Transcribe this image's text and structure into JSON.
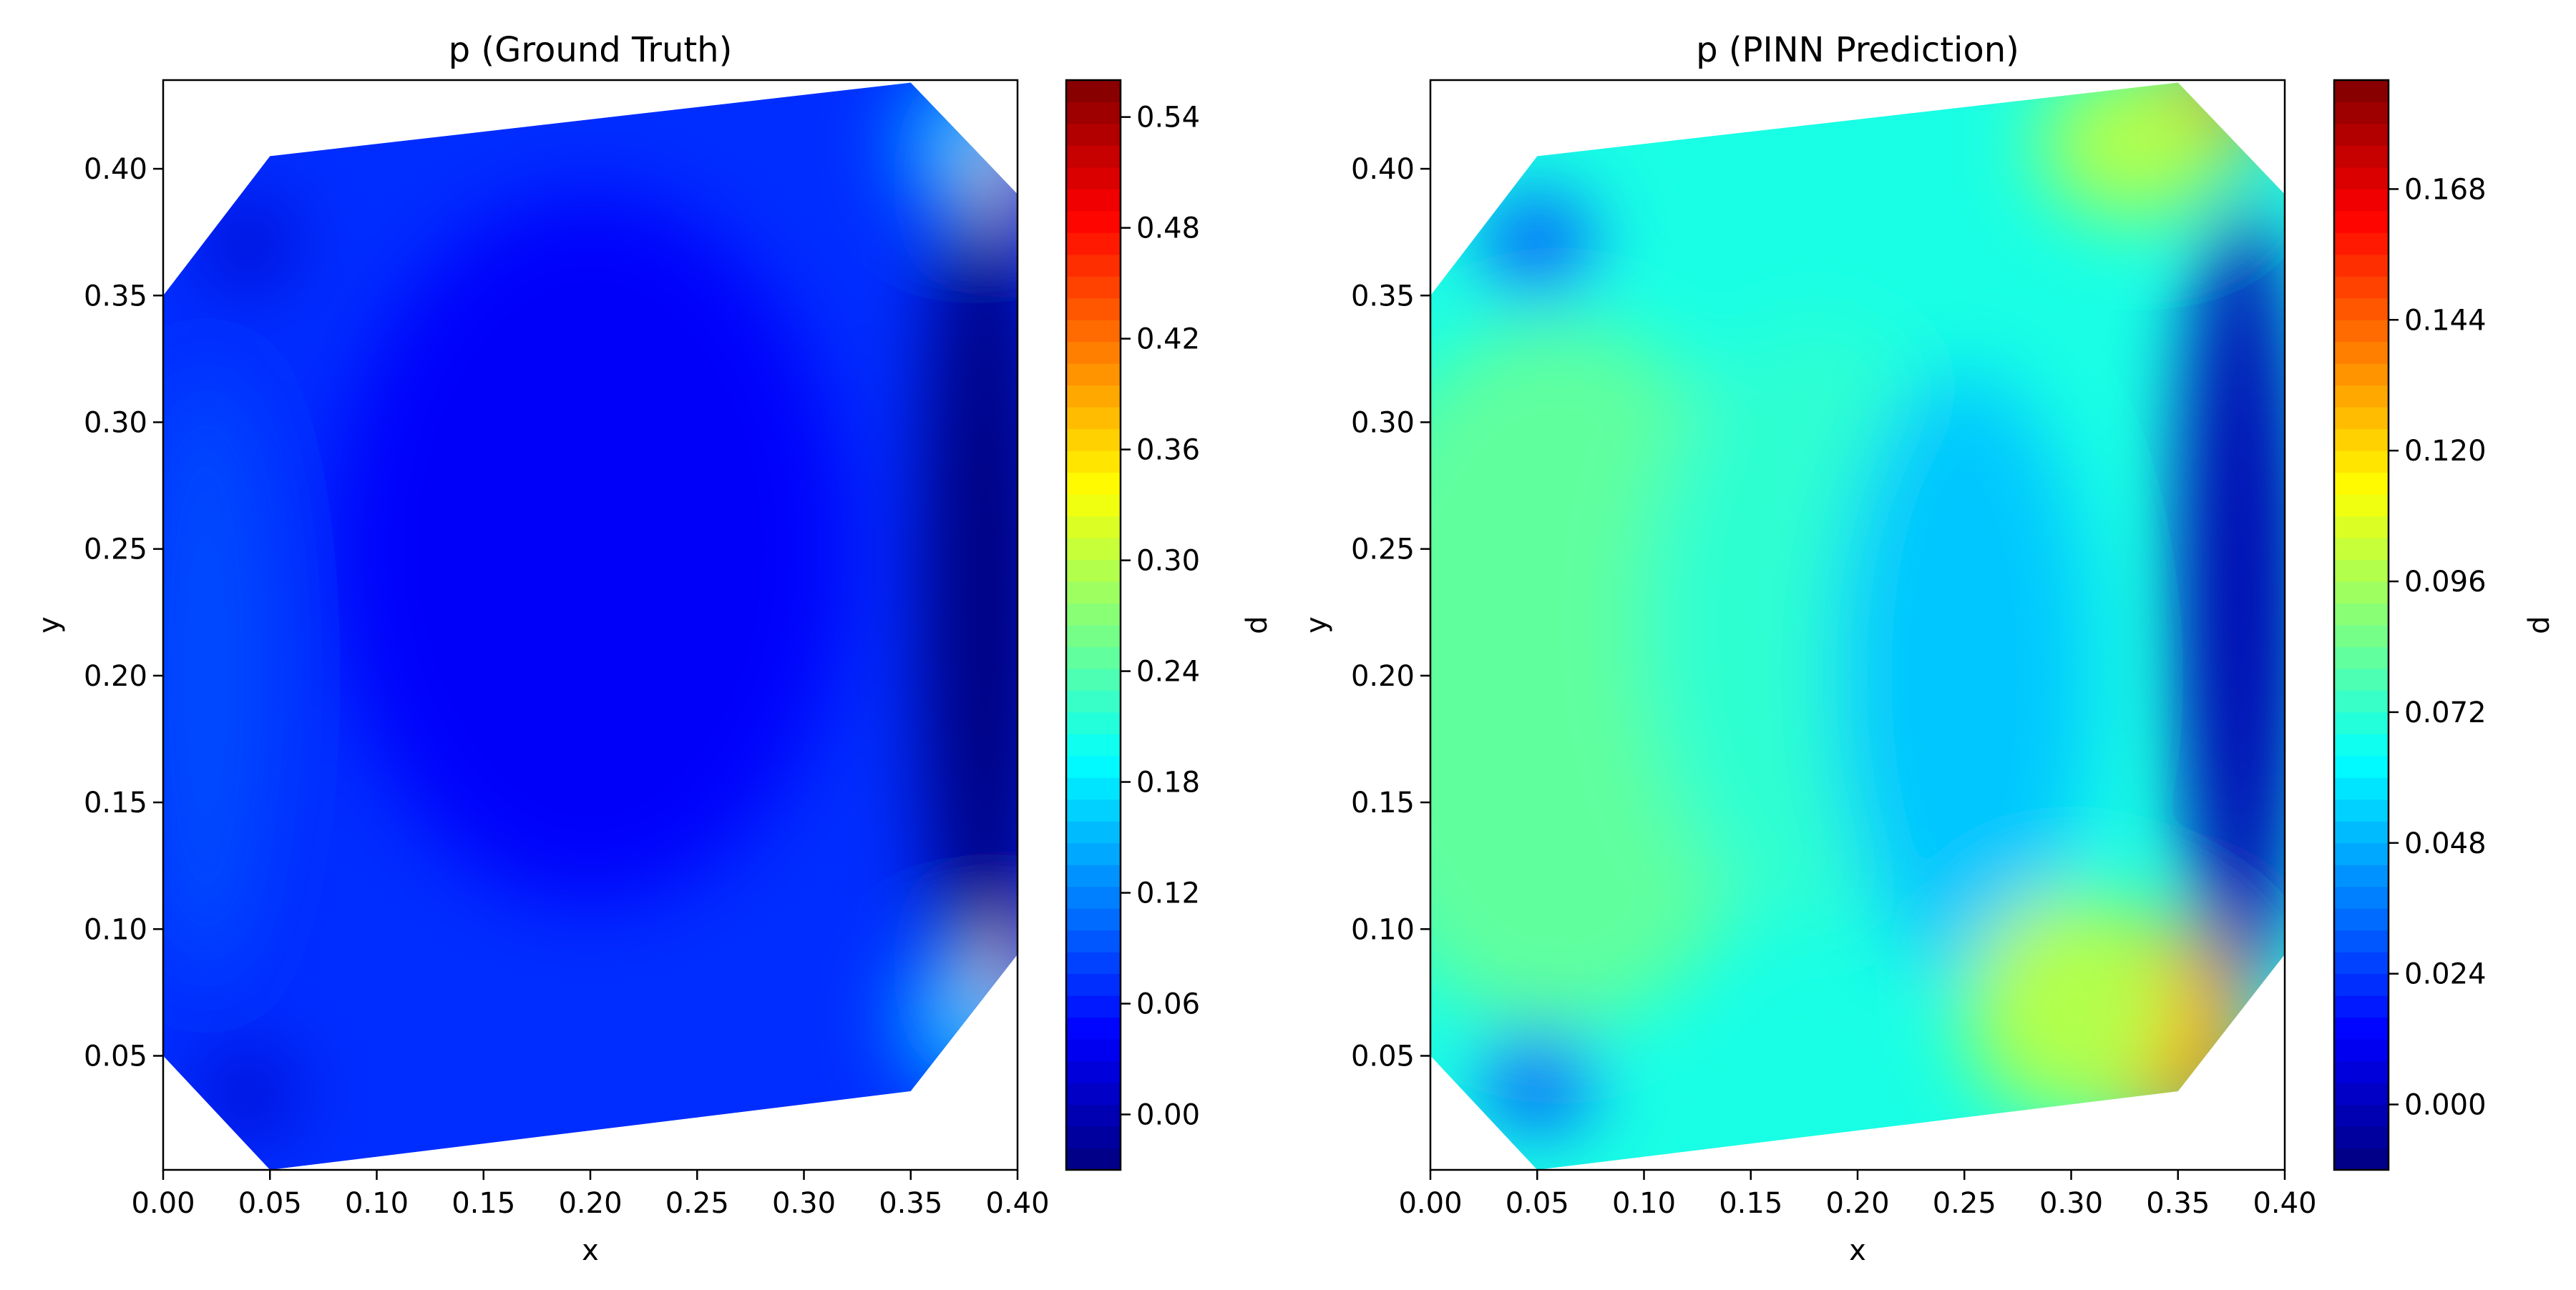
{
  "colormap": [
    "#00007f",
    "#0000ff",
    "#007fff",
    "#00ffff",
    "#7fff7f",
    "#ffff00",
    "#ff7f00",
    "#ff0000",
    "#7f0000"
  ],
  "chart_data": [
    {
      "type": "heatmap",
      "title": "p (Ground Truth)",
      "xlabel": "x",
      "ylabel": "y",
      "xlim": [
        0.0,
        0.4
      ],
      "ylim": [
        0.005,
        0.435
      ],
      "xticks": [
        "0.00",
        "0.05",
        "0.10",
        "0.15",
        "0.20",
        "0.25",
        "0.30",
        "0.35",
        "0.40"
      ],
      "yticks": [
        "0.05",
        "0.10",
        "0.15",
        "0.20",
        "0.25",
        "0.30",
        "0.35",
        "0.40"
      ],
      "domain_polygon": [
        [
          0.0,
          0.05
        ],
        [
          0.05,
          0.005
        ],
        [
          0.35,
          0.036
        ],
        [
          0.4,
          0.09
        ],
        [
          0.4,
          0.39
        ],
        [
          0.35,
          0.434
        ],
        [
          0.05,
          0.405
        ],
        [
          0.0,
          0.35
        ]
      ],
      "field_range": [
        -0.03,
        0.56
      ],
      "background_value": 0.07,
      "colorbar": {
        "label": "p",
        "range": [
          -0.03,
          0.56
        ],
        "ticks": [
          "0.00",
          "0.06",
          "0.12",
          "0.18",
          "0.24",
          "0.30",
          "0.36",
          "0.42",
          "0.48",
          "0.54"
        ]
      }
    },
    {
      "type": "heatmap",
      "title": "p (PINN Prediction)",
      "xlabel": "x",
      "ylabel": "y",
      "xlim": [
        0.0,
        0.4
      ],
      "ylim": [
        0.005,
        0.435
      ],
      "xticks": [
        "0.00",
        "0.05",
        "0.10",
        "0.15",
        "0.20",
        "0.25",
        "0.30",
        "0.35",
        "0.40"
      ],
      "yticks": [
        "0.05",
        "0.10",
        "0.15",
        "0.20",
        "0.25",
        "0.30",
        "0.35",
        "0.40"
      ],
      "domain_polygon": [
        [
          0.0,
          0.05
        ],
        [
          0.05,
          0.005
        ],
        [
          0.35,
          0.036
        ],
        [
          0.4,
          0.09
        ],
        [
          0.4,
          0.39
        ],
        [
          0.35,
          0.434
        ],
        [
          0.05,
          0.405
        ],
        [
          0.0,
          0.35
        ]
      ],
      "field_range": [
        -0.012,
        0.188
      ],
      "background_value": 0.068,
      "colorbar": {
        "label": "p",
        "range": [
          -0.012,
          0.188
        ],
        "ticks": [
          "0.000",
          "0.024",
          "0.048",
          "0.072",
          "0.096",
          "0.120",
          "0.144",
          "0.168"
        ]
      }
    }
  ]
}
